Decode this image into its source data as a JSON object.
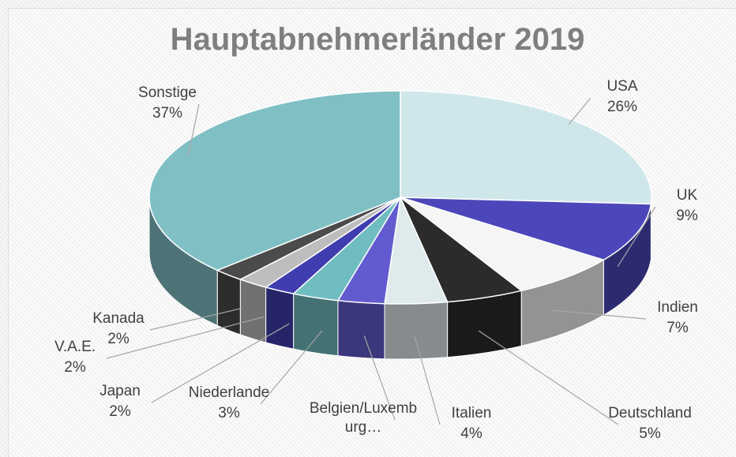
{
  "chart_data": {
    "type": "pie3d",
    "title": "Hauptabnehmerländer 2019",
    "categories": [
      "USA",
      "UK",
      "Indien",
      "Deutschland",
      "Italien",
      "Belgien/Luxemb\nurg…",
      "Niederlande",
      "Japan",
      "V.A.E.",
      "Kanada",
      "Sonstige"
    ],
    "values": [
      26,
      9,
      7,
      5,
      4,
      3,
      3,
      2,
      2,
      2,
      37
    ],
    "value_labels": [
      "26%",
      "9%",
      "7%",
      "5%",
      "4%",
      null,
      "3%",
      "2%",
      "2%",
      "2%",
      "37%"
    ],
    "colors": [
      "#cfe7eb",
      "#4b47ba",
      "#f5f5f5",
      "#2b2b2b",
      "#dfeaed",
      "#615bcf",
      "#70bdc1",
      "#403db0",
      "#bdbdbd",
      "#4b4b4b",
      "#80c0c5"
    ]
  }
}
